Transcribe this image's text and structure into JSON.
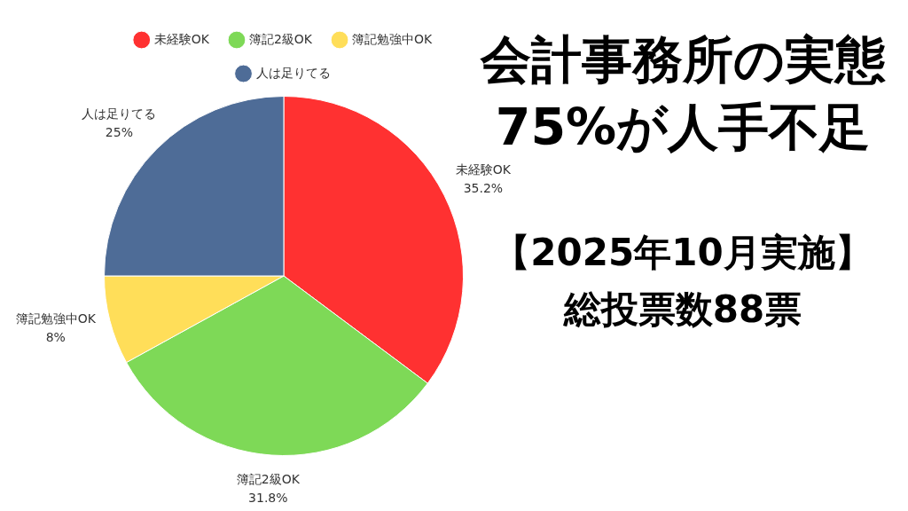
{
  "chart_data": {
    "type": "pie",
    "title": "会計事務所の実態",
    "subtitle": "75%が人手不足",
    "annotations": [
      "【2025年10月実施】",
      "総投票数88票"
    ],
    "categories": [
      "未経験OK",
      "簿記2級OK",
      "簿記勉強中OK",
      "人は足りてる"
    ],
    "values": [
      35.2,
      31.8,
      8,
      25
    ],
    "colors": [
      "#ff3131",
      "#7ed957",
      "#ffde59",
      "#4e6c97"
    ],
    "value_labels": [
      "35.2%",
      "31.8%",
      "8%",
      "25%"
    ],
    "legend": "top"
  }
}
